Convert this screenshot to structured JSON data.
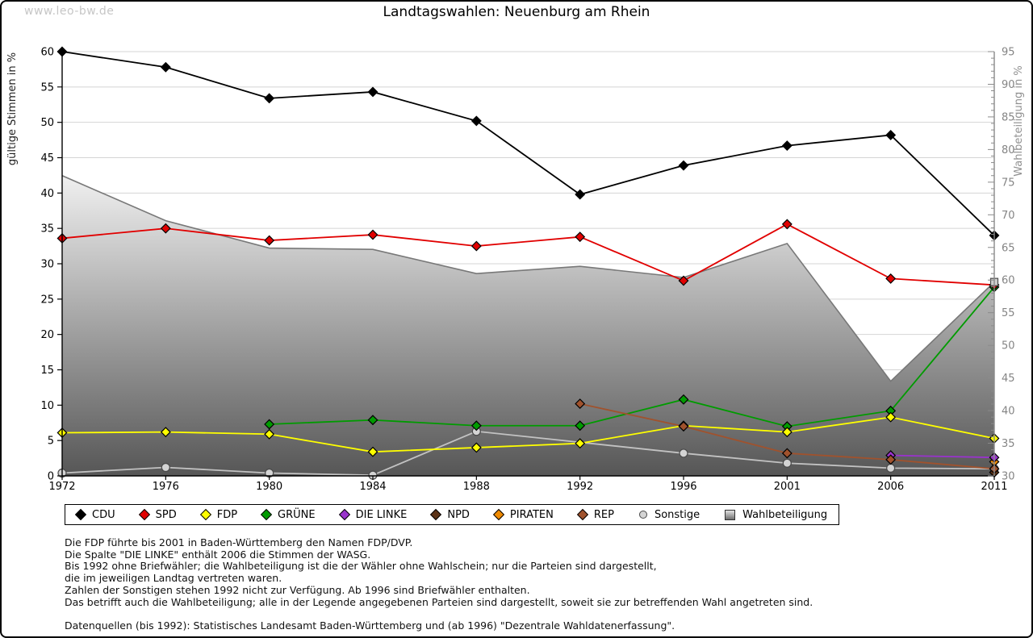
{
  "watermark": "www.leo-bw.de",
  "title": "Landtagswahlen: Neuenburg am Rhein",
  "chart_data": {
    "type": "line",
    "title": "Landtagswahlen: Neuenburg am Rhein",
    "categories": [
      "1972",
      "1976",
      "1980",
      "1984",
      "1988",
      "1992",
      "1996",
      "2001",
      "2006",
      "2011"
    ],
    "left_axis": {
      "label": "gültige Stimmen in %",
      "min": 0,
      "max": 60,
      "step": 5
    },
    "right_axis": {
      "label": "Wahlbeteiligung in %",
      "min": 30,
      "max": 95,
      "step": 5,
      "minor_step": 1
    },
    "grid": true,
    "legend_position": "bottom",
    "series": [
      {
        "name": "Wahlbeteiligung",
        "axis": "right",
        "type": "area",
        "marker": "square",
        "color": "#787878",
        "fill_top": "#f0f0f0",
        "fill_bottom": "#565656",
        "values": [
          76.0,
          69.1,
          64.9,
          64.7,
          61.0,
          62.1,
          60.4,
          65.6,
          44.5,
          59.7
        ]
      },
      {
        "name": "Sonstige",
        "axis": "left",
        "type": "line",
        "marker": "circle",
        "color": "#c2c2c2",
        "marker_fill": "#d4d4d4",
        "marker_stroke": "#4a4a4a",
        "values": [
          0.4,
          1.2,
          0.4,
          0.1,
          6.3,
          null,
          3.2,
          1.8,
          1.1,
          1.0
        ]
      },
      {
        "name": "NPD",
        "axis": "left",
        "type": "line",
        "marker": "diamond",
        "color": "#5c3317",
        "marker_fill": "#5c3317",
        "marker_stroke": "#000000",
        "values": [
          null,
          null,
          null,
          null,
          null,
          null,
          null,
          null,
          null,
          0.5
        ]
      },
      {
        "name": "PIRATEN",
        "axis": "left",
        "type": "line",
        "marker": "diamond",
        "color": "#ef8a00",
        "marker_fill": "#ef8a00",
        "marker_stroke": "#000000",
        "values": [
          null,
          null,
          null,
          null,
          null,
          null,
          null,
          null,
          null,
          2.0
        ]
      },
      {
        "name": "DIE LINKE",
        "axis": "left",
        "type": "line",
        "marker": "diamond",
        "color": "#9933cc",
        "marker_fill": "#9933cc",
        "marker_stroke": "#000000",
        "values": [
          null,
          null,
          null,
          null,
          null,
          null,
          null,
          null,
          2.9,
          2.6
        ]
      },
      {
        "name": "GRÜNE",
        "axis": "left",
        "type": "line",
        "marker": "diamond",
        "color": "#009b00",
        "marker_fill": "#009b00",
        "marker_stroke": "#000000",
        "values": [
          null,
          null,
          7.3,
          7.9,
          7.1,
          7.1,
          10.8,
          7.0,
          9.2,
          26.7
        ]
      },
      {
        "name": "FDP",
        "axis": "left",
        "type": "line",
        "marker": "diamond",
        "color": "#ffff00",
        "marker_fill": "#ffff00",
        "marker_stroke": "#000000",
        "values": [
          6.1,
          6.2,
          5.9,
          3.4,
          4.0,
          4.6,
          7.1,
          6.2,
          8.3,
          5.3
        ]
      },
      {
        "name": "REP",
        "axis": "left",
        "type": "line",
        "marker": "diamond",
        "color": "#a0522d",
        "marker_fill": "#a0522d",
        "marker_stroke": "#000000",
        "values": [
          null,
          null,
          null,
          null,
          null,
          10.2,
          7.0,
          3.2,
          2.3,
          1.0
        ]
      },
      {
        "name": "SPD",
        "axis": "left",
        "type": "line",
        "marker": "diamond",
        "color": "#e10000",
        "marker_fill": "#e10000",
        "marker_stroke": "#000000",
        "values": [
          33.6,
          35.0,
          33.3,
          34.1,
          32.5,
          33.8,
          27.6,
          35.6,
          27.9,
          27.0
        ]
      },
      {
        "name": "CDU",
        "axis": "left",
        "type": "line",
        "marker": "diamond",
        "color": "#000000",
        "marker_fill": "#000000",
        "marker_stroke": "#000000",
        "values": [
          60.0,
          57.8,
          53.4,
          54.3,
          50.2,
          39.8,
          43.9,
          46.7,
          48.2,
          34.0
        ]
      }
    ],
    "legend_order": [
      "CDU",
      "SPD",
      "FDP",
      "GRÜNE",
      "DIE LINKE",
      "NPD",
      "PIRATEN",
      "REP",
      "Sonstige",
      "Wahlbeteiligung"
    ]
  },
  "footnotes": {
    "lines": [
      "Die FDP führte bis 2001 in Baden-Württemberg den Namen FDP/DVP.",
      "Die Spalte \"DIE LINKE\" enthält 2006 die Stimmen der WASG.",
      "Bis 1992 ohne Briefwähler; die Wahlbeteiligung ist die der Wähler ohne Wahlschein; nur die Parteien sind dargestellt,",
      "die im jeweiligen Landtag vertreten waren.",
      "Zahlen der Sonstigen stehen 1992 nicht zur Verfügung. Ab 1996 sind Briefwähler enthalten.",
      "Das betrifft auch die Wahlbeteiligung; alle in der Legende angegebenen Parteien sind dargestellt, soweit sie zur betreffenden Wahl angetreten sind.",
      "",
      "Datenquellen (bis 1992): Statistisches Landesamt Baden-Württemberg und (ab 1996) \"Dezentrale Wahldatenerfassung\"."
    ]
  }
}
